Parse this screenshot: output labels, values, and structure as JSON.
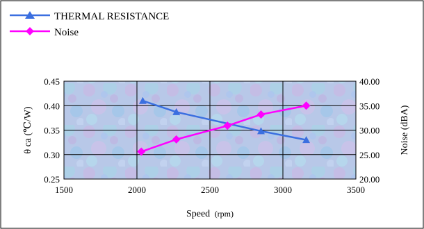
{
  "chart_data": {
    "type": "line",
    "legend": {
      "placement": "top-left",
      "entries": [
        {
          "label": "THERMAL RESISTANCE",
          "color": "#3B6FE0",
          "marker": "triangle"
        },
        {
          "label": "Noise",
          "color": "#FF00FF",
          "marker": "diamond"
        }
      ]
    },
    "xlabel": {
      "main": "Speed",
      "unit": "(rpm)"
    },
    "ylabel_left": "θ ca (℃/W)",
    "ylabel_right": "Noise (dBA)",
    "xlim": [
      1500,
      3500
    ],
    "ylim_left": [
      0.25,
      0.45
    ],
    "ylim_right": [
      20.0,
      40.0
    ],
    "x_ticks": [
      "1500",
      "2000",
      "2500",
      "3000",
      "3500"
    ],
    "y_left_ticks": [
      "0.25",
      "0.30",
      "0.35",
      "0.40",
      "0.45"
    ],
    "y_right_ticks": [
      "20.00",
      "25.00",
      "30.00",
      "35.00",
      "40.00"
    ],
    "grid": true,
    "series": [
      {
        "name": "THERMAL RESISTANCE",
        "axis": "left",
        "color": "#3B6FE0",
        "marker": "triangle",
        "x": [
          2040,
          2270,
          2850,
          3160
        ],
        "values": [
          0.41,
          0.387,
          0.348,
          0.33
        ]
      },
      {
        "name": "Noise",
        "axis": "right",
        "color": "#FF00FF",
        "marker": "diamond",
        "x": [
          2030,
          2270,
          2620,
          2850,
          3160
        ],
        "values": [
          25.6,
          28.1,
          30.9,
          33.2,
          35.0
        ]
      }
    ]
  }
}
